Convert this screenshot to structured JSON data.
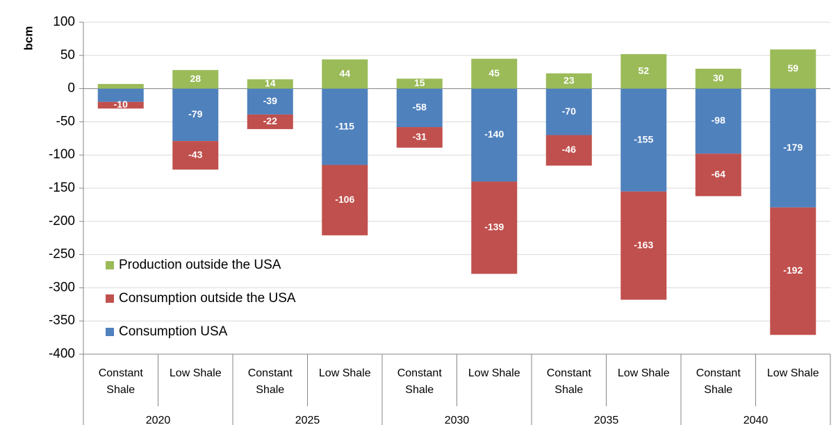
{
  "chart_data": {
    "type": "stacked-bar",
    "y_label": "bcm",
    "sub_categories": [
      "Constant Shale",
      "Low Shale",
      "Constant Shale",
      "Low Shale",
      "Constant Shale",
      "Low Shale",
      "Constant Shale",
      "Low Shale",
      "Constant Shale",
      "Low Shale"
    ],
    "groups": [
      "2020",
      "2025",
      "2030",
      "2035",
      "2040"
    ],
    "series": [
      {
        "name": "Consumption USA",
        "color": "#4f81bd",
        "values": [
          -20,
          -79,
          -39,
          -115,
          -58,
          -140,
          -70,
          -155,
          -98,
          -179
        ],
        "value_labels": [
          null,
          "-79",
          "-39",
          "-115",
          "-58",
          "-140",
          "-70",
          "-155",
          "-98",
          "-179"
        ]
      },
      {
        "name": "Consumption outside the USA",
        "color": "#c0504d",
        "values": [
          -10,
          -43,
          -22,
          -106,
          -31,
          -139,
          -46,
          -163,
          -64,
          -192
        ],
        "value_labels": [
          "-10",
          "-43",
          "-22",
          "-106",
          "-31",
          "-139",
          "-46",
          "-163",
          "-64",
          "-192"
        ]
      },
      {
        "name": "Production outside the USA",
        "color": "#9bbb59",
        "values": [
          7,
          28,
          14,
          44,
          15,
          45,
          23,
          52,
          30,
          59
        ],
        "value_labels": [
          null,
          "28",
          "14",
          "44",
          "15",
          "45",
          "23",
          "52",
          "30",
          "59"
        ]
      }
    ],
    "ylim": [
      -400,
      100
    ],
    "yticks": [
      -400,
      -350,
      -300,
      -250,
      -200,
      -150,
      -100,
      -50,
      0,
      50,
      100
    ],
    "grid": true
  }
}
